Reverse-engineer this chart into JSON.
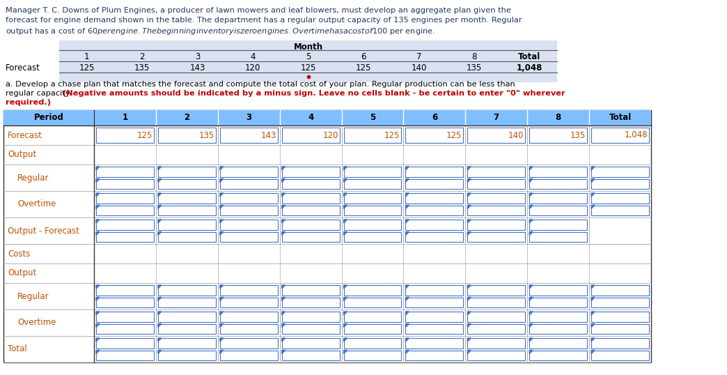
{
  "title_line1": "Manager T. C. Downs of Plum Engines, a producer of lawn mowers and leaf blowers, must develop an aggregate plan given the",
  "title_line2": "forecast for engine demand shown in the table. The department has a regular output capacity of 135 engines per month. Regular",
  "title_line3": "output has a cost of $60 per engine. The beginning inventory is zero engines. Overtime has a cost of $100 per engine.",
  "title_color": "#1f3864",
  "top_table_header": "Month",
  "top_table_cols": [
    "1",
    "2",
    "3",
    "4",
    "5",
    "6",
    "7",
    "8",
    "Total"
  ],
  "top_table_row_label": "Forecast",
  "top_table_row_vals": [
    "125",
    "135",
    "143",
    "120",
    "125",
    "125",
    "140",
    "135",
    "1,048"
  ],
  "main_table_header": [
    "Period",
    "1",
    "2",
    "3",
    "4",
    "5",
    "6",
    "7",
    "8",
    "Total"
  ],
  "forecast_values": [
    "125",
    "135",
    "143",
    "120",
    "125",
    "125",
    "140",
    "135",
    "1,048"
  ],
  "sub_normal_1": "a. Develop a chase plan that matches the forecast and compute the total cost of your plan. Regular production can be less than",
  "sub_normal_2": "regular capacity. ",
  "sub_bold_2": "(Negative amounts should be indicated by a minus sign. Leave no cells blank - be certain to enter \"0\" wherever",
  "sub_bold_3": "required.)",
  "header_bg": "#7fbfff",
  "header_bg_top": "#d9e1f2",
  "top_table_bg": "#d9e1f2",
  "cell_border_color": "#4472c4",
  "cell_border_color2": "#000000",
  "label_color": "#c05000",
  "forecast_val_color": "#c05000",
  "text_color_black": "#000000",
  "text_color_red": "#c00000",
  "dot_color": "#c00000",
  "fig_bg": "#ffffff",
  "row_labels": [
    "Forecast",
    "Output",
    "Regular",
    "Overtime",
    "Output - Forecast",
    "Costs",
    "Output",
    "Regular",
    "Overtime",
    "Total"
  ],
  "row_has_double_cells": [
    true,
    false,
    true,
    true,
    true,
    false,
    false,
    true,
    true,
    true
  ],
  "row_is_header_like": [
    false,
    false,
    false,
    false,
    false,
    false,
    false,
    false,
    false,
    false
  ],
  "output_forecast_only_8_cols": true
}
